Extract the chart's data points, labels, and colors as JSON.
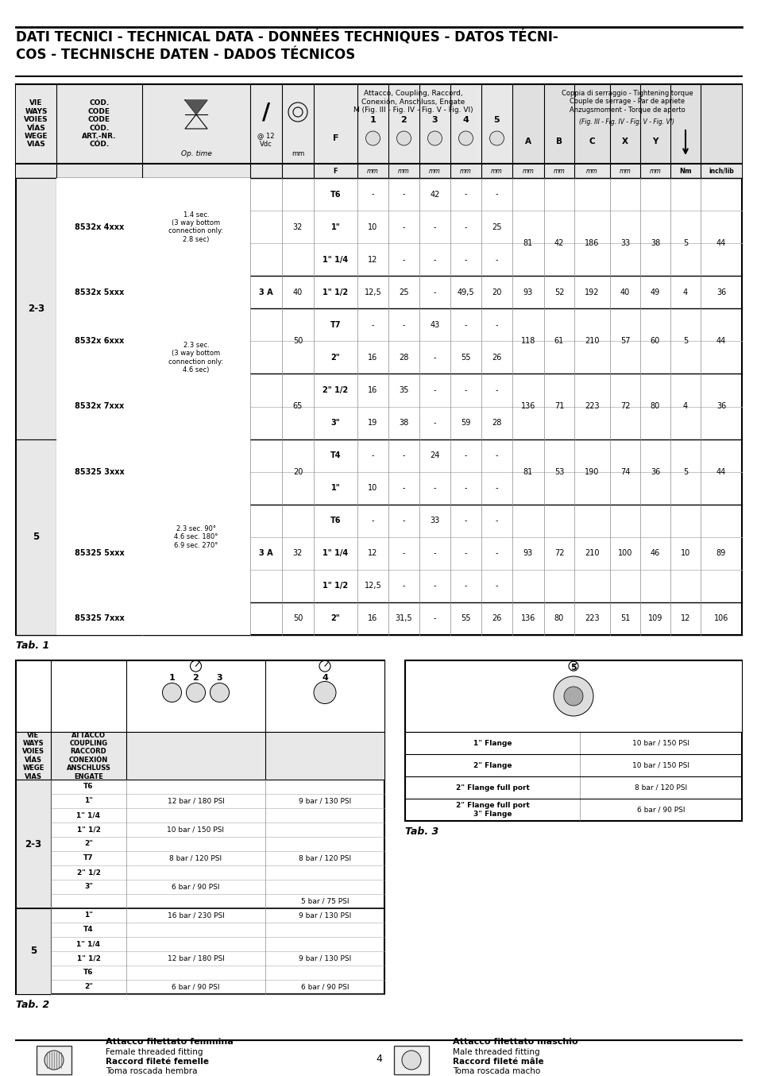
{
  "title_line1": "DATI TECNICI - TECHNICAL DATA - DONNÉES TECHNIQUES - DATOS TÉCNI-",
  "title_line2": "COS - TECHNISCHE DATEN - DADOS TÉCNICOS",
  "page_number": "4",
  "bg_color": "#ffffff"
}
